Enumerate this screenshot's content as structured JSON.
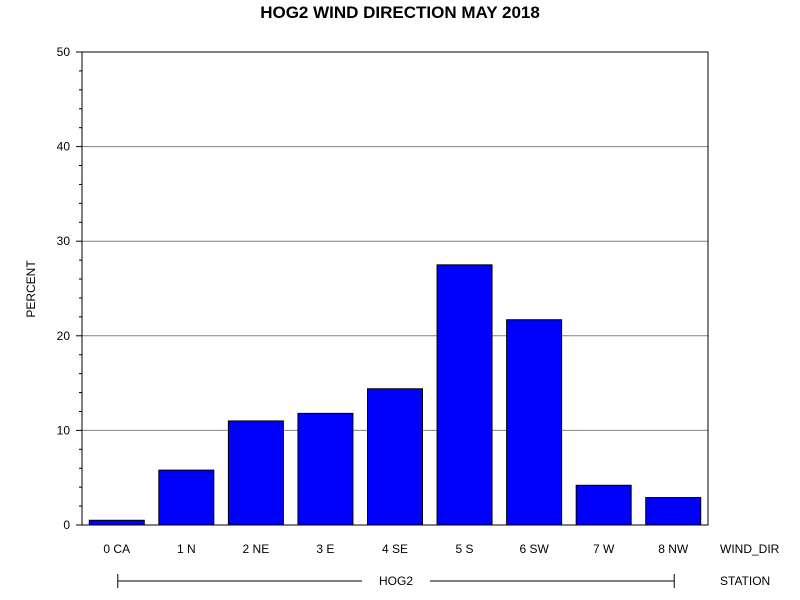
{
  "chart_data": {
    "type": "bar",
    "title": "HOG2 WIND DIRECTION MAY 2018",
    "ylabel": "PERCENT",
    "xlabel": "WIND_DIR",
    "group_axis_label": "STATION",
    "group_label": "HOG2",
    "categories": [
      "0 CA",
      "1 N",
      "2 NE",
      "3 E",
      "4 SE",
      "5 S",
      "6 SW",
      "7 W",
      "8 NW"
    ],
    "values": [
      0.5,
      5.8,
      11.0,
      11.8,
      14.4,
      27.5,
      21.7,
      4.2,
      2.9
    ],
    "ylim": [
      0,
      50
    ],
    "yticks": [
      "0",
      "10",
      "20",
      "30",
      "40",
      "50"
    ],
    "grid": true,
    "bar_color": "#0000ff"
  }
}
